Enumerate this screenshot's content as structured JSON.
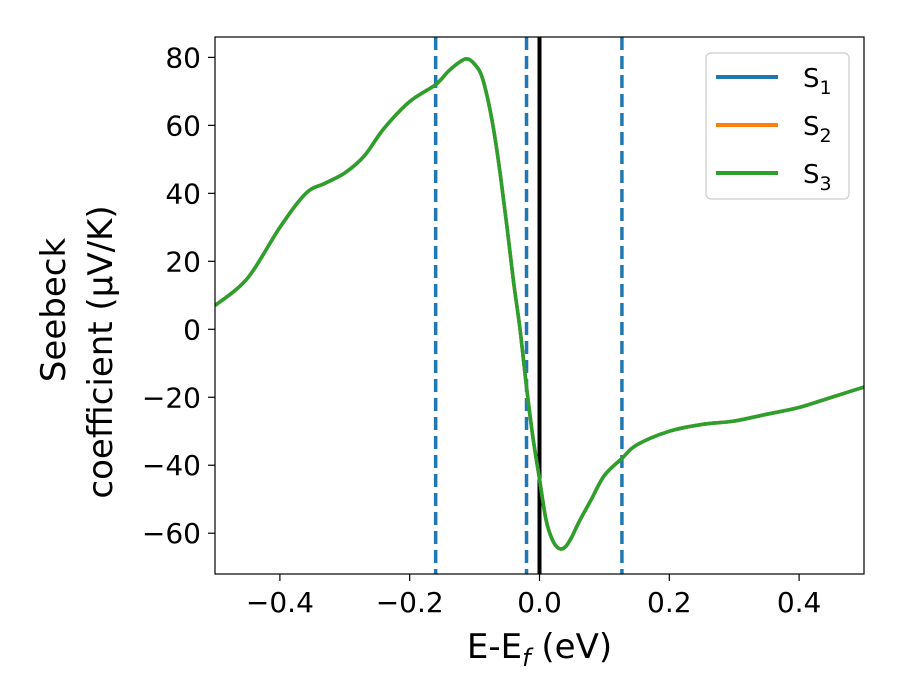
{
  "chart_data": {
    "type": "line",
    "xlabel": "E-E",
    "xlabel_sub": "f",
    "xlabel_unit": " (eV)",
    "ylabel_line1": "Seebeck",
    "ylabel_line2": "coefficient  (μV/K)",
    "xlim": [
      -0.5,
      0.5
    ],
    "ylim": [
      -72,
      86
    ],
    "xticks": [
      -0.4,
      -0.2,
      0.0,
      0.2,
      0.4
    ],
    "xtick_labels": [
      "−0.4",
      "−0.2",
      "0.0",
      "0.2",
      "0.4"
    ],
    "yticks": [
      -60,
      -40,
      -20,
      0,
      20,
      40,
      60,
      80
    ],
    "ytick_labels": [
      "−60",
      "−40",
      "−20",
      "0",
      "20",
      "40",
      "60",
      "80"
    ],
    "grid": false,
    "legend_position": "top-right",
    "fermi_line": {
      "x": 0.0,
      "color": "#000000"
    },
    "vlines_dashed": {
      "x": [
        -0.16,
        -0.02,
        0.127
      ],
      "color": "#1f77b4"
    },
    "series": [
      {
        "name": "S",
        "sub": "1",
        "color": "#1f77b4",
        "x": [
          -0.5,
          -0.45,
          -0.4,
          -0.36,
          -0.33,
          -0.3,
          -0.27,
          -0.24,
          -0.2,
          -0.16,
          -0.14,
          -0.12,
          -0.11,
          -0.1,
          -0.09,
          -0.08,
          -0.07,
          -0.06,
          -0.05,
          -0.04,
          -0.03,
          -0.02,
          -0.01,
          0.0,
          0.01,
          0.02,
          0.03,
          0.04,
          0.05,
          0.06,
          0.08,
          0.1,
          0.127,
          0.15,
          0.2,
          0.25,
          0.3,
          0.35,
          0.4,
          0.45,
          0.5
        ],
        "y": [
          7,
          15,
          30,
          40,
          43,
          46,
          51,
          59,
          67,
          72,
          76,
          79,
          79.5,
          78,
          75,
          68,
          58,
          45,
          30,
          14,
          0,
          -17,
          -32,
          -44,
          -56,
          -62,
          -64.5,
          -64,
          -61,
          -57,
          -50,
          -43,
          -38,
          -34,
          -30,
          -28,
          -27,
          -25,
          -23,
          -20,
          -17
        ]
      },
      {
        "name": "S",
        "sub": "2",
        "color": "#ff7f0e",
        "x": [
          -0.5,
          -0.45,
          -0.4,
          -0.36,
          -0.33,
          -0.3,
          -0.27,
          -0.24,
          -0.2,
          -0.16,
          -0.14,
          -0.12,
          -0.11,
          -0.1,
          -0.09,
          -0.08,
          -0.07,
          -0.06,
          -0.05,
          -0.04,
          -0.03,
          -0.02,
          -0.01,
          0.0,
          0.01,
          0.02,
          0.03,
          0.04,
          0.05,
          0.06,
          0.08,
          0.1,
          0.127,
          0.15,
          0.2,
          0.25,
          0.3,
          0.35,
          0.4,
          0.45,
          0.5
        ],
        "y": [
          7,
          15,
          30,
          40,
          43,
          46,
          51,
          59,
          67,
          72,
          76,
          79,
          79.5,
          78,
          75,
          68,
          58,
          45,
          30,
          14,
          0,
          -17,
          -32,
          -44,
          -56,
          -62,
          -64.5,
          -64,
          -61,
          -57,
          -50,
          -43,
          -38,
          -34,
          -30,
          -28,
          -27,
          -25,
          -23,
          -20,
          -17
        ]
      },
      {
        "name": "S",
        "sub": "3",
        "color": "#2ca02c",
        "x": [
          -0.5,
          -0.45,
          -0.4,
          -0.36,
          -0.33,
          -0.3,
          -0.27,
          -0.24,
          -0.2,
          -0.16,
          -0.14,
          -0.12,
          -0.11,
          -0.1,
          -0.09,
          -0.08,
          -0.07,
          -0.06,
          -0.05,
          -0.04,
          -0.03,
          -0.02,
          -0.01,
          0.0,
          0.01,
          0.02,
          0.03,
          0.04,
          0.05,
          0.06,
          0.08,
          0.1,
          0.127,
          0.15,
          0.2,
          0.25,
          0.3,
          0.35,
          0.4,
          0.45,
          0.5
        ],
        "y": [
          7,
          15,
          30,
          40,
          43,
          46,
          51,
          59,
          67,
          72,
          76,
          79,
          79.5,
          78,
          75,
          68,
          58,
          45,
          30,
          14,
          0,
          -17,
          -32,
          -44,
          -56,
          -62,
          -64.5,
          -64,
          -61,
          -57,
          -50,
          -43,
          -38,
          -34,
          -30,
          -28,
          -27,
          -25,
          -23,
          -20,
          -17
        ]
      }
    ]
  }
}
